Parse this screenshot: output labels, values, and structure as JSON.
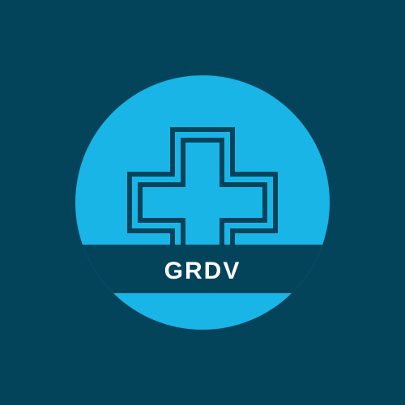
{
  "logo": {
    "brand_name": "GRDV",
    "icon": "medical-cross-icon",
    "colors": {
      "background": "#03445b",
      "circle": "#1ab5e7",
      "band": "#03445b",
      "cross_outline": "#03445b",
      "text": "#ffffff"
    }
  }
}
